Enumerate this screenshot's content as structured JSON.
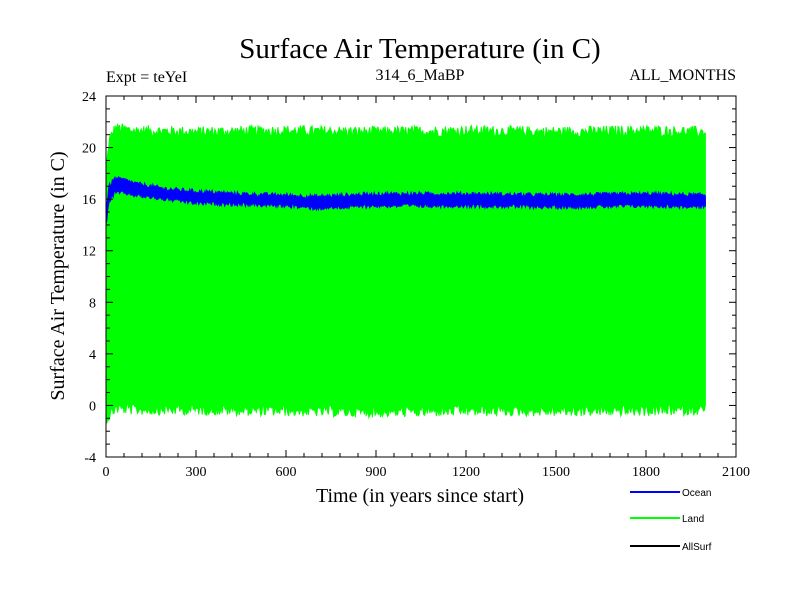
{
  "chart_data": {
    "type": "line",
    "title": "Surface Air Temperature (in C)",
    "subtitle_left": "Expt = teYeI",
    "subtitle_center": "314_6_MaBP",
    "subtitle_right": "ALL_MONTHS",
    "xlabel": "Time (in years since start)",
    "ylabel": "Surface Air Temperature (in C)",
    "xlim": [
      0,
      2100
    ],
    "ylim": [
      -4,
      24
    ],
    "x_ticks": [
      0,
      300,
      600,
      900,
      1200,
      1500,
      1800,
      2100
    ],
    "y_ticks": [
      -4,
      0,
      4,
      8,
      12,
      16,
      20,
      24
    ],
    "x_end": 2000,
    "series": [
      {
        "name": "Land",
        "color": "#00ff00",
        "style": "seasonal-band",
        "upper_envelope": [
          [
            0,
            18.0
          ],
          [
            10,
            20.5
          ],
          [
            30,
            21.5
          ],
          [
            100,
            21.3
          ],
          [
            300,
            21.2
          ],
          [
            600,
            21.3
          ],
          [
            900,
            21.2
          ],
          [
            1200,
            21.3
          ],
          [
            1500,
            21.2
          ],
          [
            1800,
            21.3
          ],
          [
            2000,
            21.2
          ]
        ],
        "lower_envelope": [
          [
            0,
            -1.0
          ],
          [
            10,
            -0.8
          ],
          [
            30,
            -0.2
          ],
          [
            100,
            -0.3
          ],
          [
            300,
            -0.3
          ],
          [
            600,
            -0.4
          ],
          [
            900,
            -0.5
          ],
          [
            1200,
            -0.4
          ],
          [
            1500,
            -0.4
          ],
          [
            1800,
            -0.4
          ],
          [
            2000,
            -0.3
          ]
        ]
      },
      {
        "name": "Ocean",
        "color": "#0000ff",
        "style": "band",
        "upper_envelope": [
          [
            0,
            15.0
          ],
          [
            10,
            17.0
          ],
          [
            30,
            17.6
          ],
          [
            60,
            17.5
          ],
          [
            100,
            17.2
          ],
          [
            200,
            16.8
          ],
          [
            300,
            16.6
          ],
          [
            450,
            16.4
          ],
          [
            600,
            16.3
          ],
          [
            700,
            16.2
          ],
          [
            900,
            16.4
          ],
          [
            1200,
            16.4
          ],
          [
            1500,
            16.3
          ],
          [
            1800,
            16.4
          ],
          [
            2000,
            16.3
          ]
        ],
        "lower_envelope": [
          [
            0,
            14.0
          ],
          [
            10,
            15.8
          ],
          [
            30,
            16.5
          ],
          [
            60,
            16.5
          ],
          [
            100,
            16.3
          ],
          [
            200,
            16.0
          ],
          [
            300,
            15.7
          ],
          [
            450,
            15.6
          ],
          [
            600,
            15.5
          ],
          [
            700,
            15.3
          ],
          [
            900,
            15.5
          ],
          [
            1200,
            15.5
          ],
          [
            1500,
            15.4
          ],
          [
            1800,
            15.5
          ],
          [
            2000,
            15.4
          ]
        ]
      },
      {
        "name": "AllSurf",
        "color": "#000000",
        "style": "line",
        "values": []
      }
    ],
    "legend": [
      "Ocean",
      "Land",
      "AllSurf"
    ],
    "legend_position": "bottom-right"
  }
}
